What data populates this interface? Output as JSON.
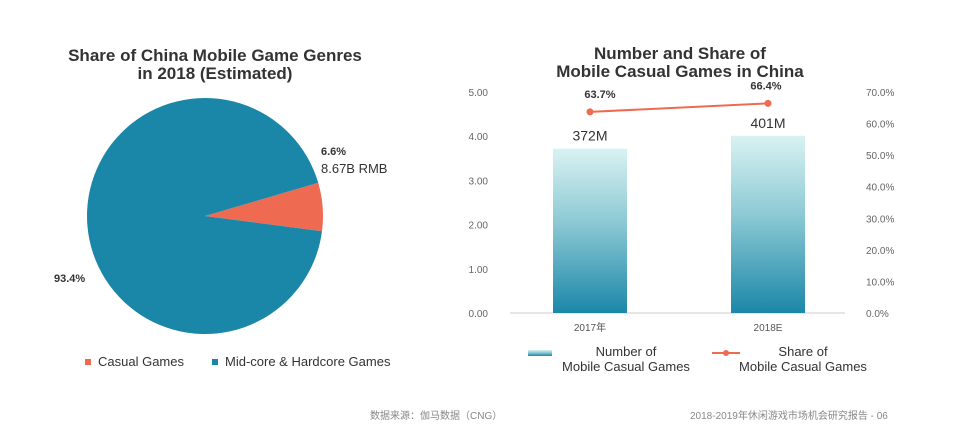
{
  "footer": {
    "source": "数据来源：伽马数据（CNG）",
    "report": "2018-2019年休闲游戏市场机会研究报告 - 06"
  },
  "chart_data": [
    {
      "type": "pie",
      "title_line1": "Share of China Mobile Game Genres",
      "title_line2": "in 2018 (Estimated)",
      "slices": [
        {
          "name": "Casual Games",
          "value": 6.6,
          "label": "6.6%",
          "sublabel": "8.67B RMB",
          "color": "#ee6a50"
        },
        {
          "name": "Mid-core & Hardcore Games",
          "value": 93.4,
          "label": "93.4%",
          "sublabel": "",
          "color": "#1b87a8"
        }
      ],
      "legend": {
        "position": "bottom"
      }
    },
    {
      "type": "bar+line",
      "title_line1": "Number and Share of",
      "title_line2": "Mobile Casual Games in China",
      "categories": [
        "2017年",
        "2018E"
      ],
      "bars": {
        "name_line1": "Number of",
        "name_line2": "Mobile Casual Games",
        "values": [
          3.72,
          4.01
        ],
        "labels": [
          "372M",
          "401M"
        ],
        "color_top": "#d9f2f2",
        "color_bottom": "#1b87a8"
      },
      "line": {
        "name_line1": "Share of",
        "name_line2": "Mobile Casual Games",
        "values": [
          63.7,
          66.4
        ],
        "labels": [
          "63.7%",
          "66.4%"
        ],
        "color": "#ee6a50"
      },
      "y_left": {
        "min": 0,
        "max": 5,
        "ticks": [
          "0.00",
          "1.00",
          "2.00",
          "3.00",
          "4.00",
          "5.00"
        ]
      },
      "y_right": {
        "min": 0,
        "max": 70,
        "ticks": [
          "0.0%",
          "10.0%",
          "20.0%",
          "30.0%",
          "40.0%",
          "50.0%",
          "60.0%",
          "70.0%"
        ]
      },
      "legend": {
        "position": "bottom"
      }
    }
  ]
}
